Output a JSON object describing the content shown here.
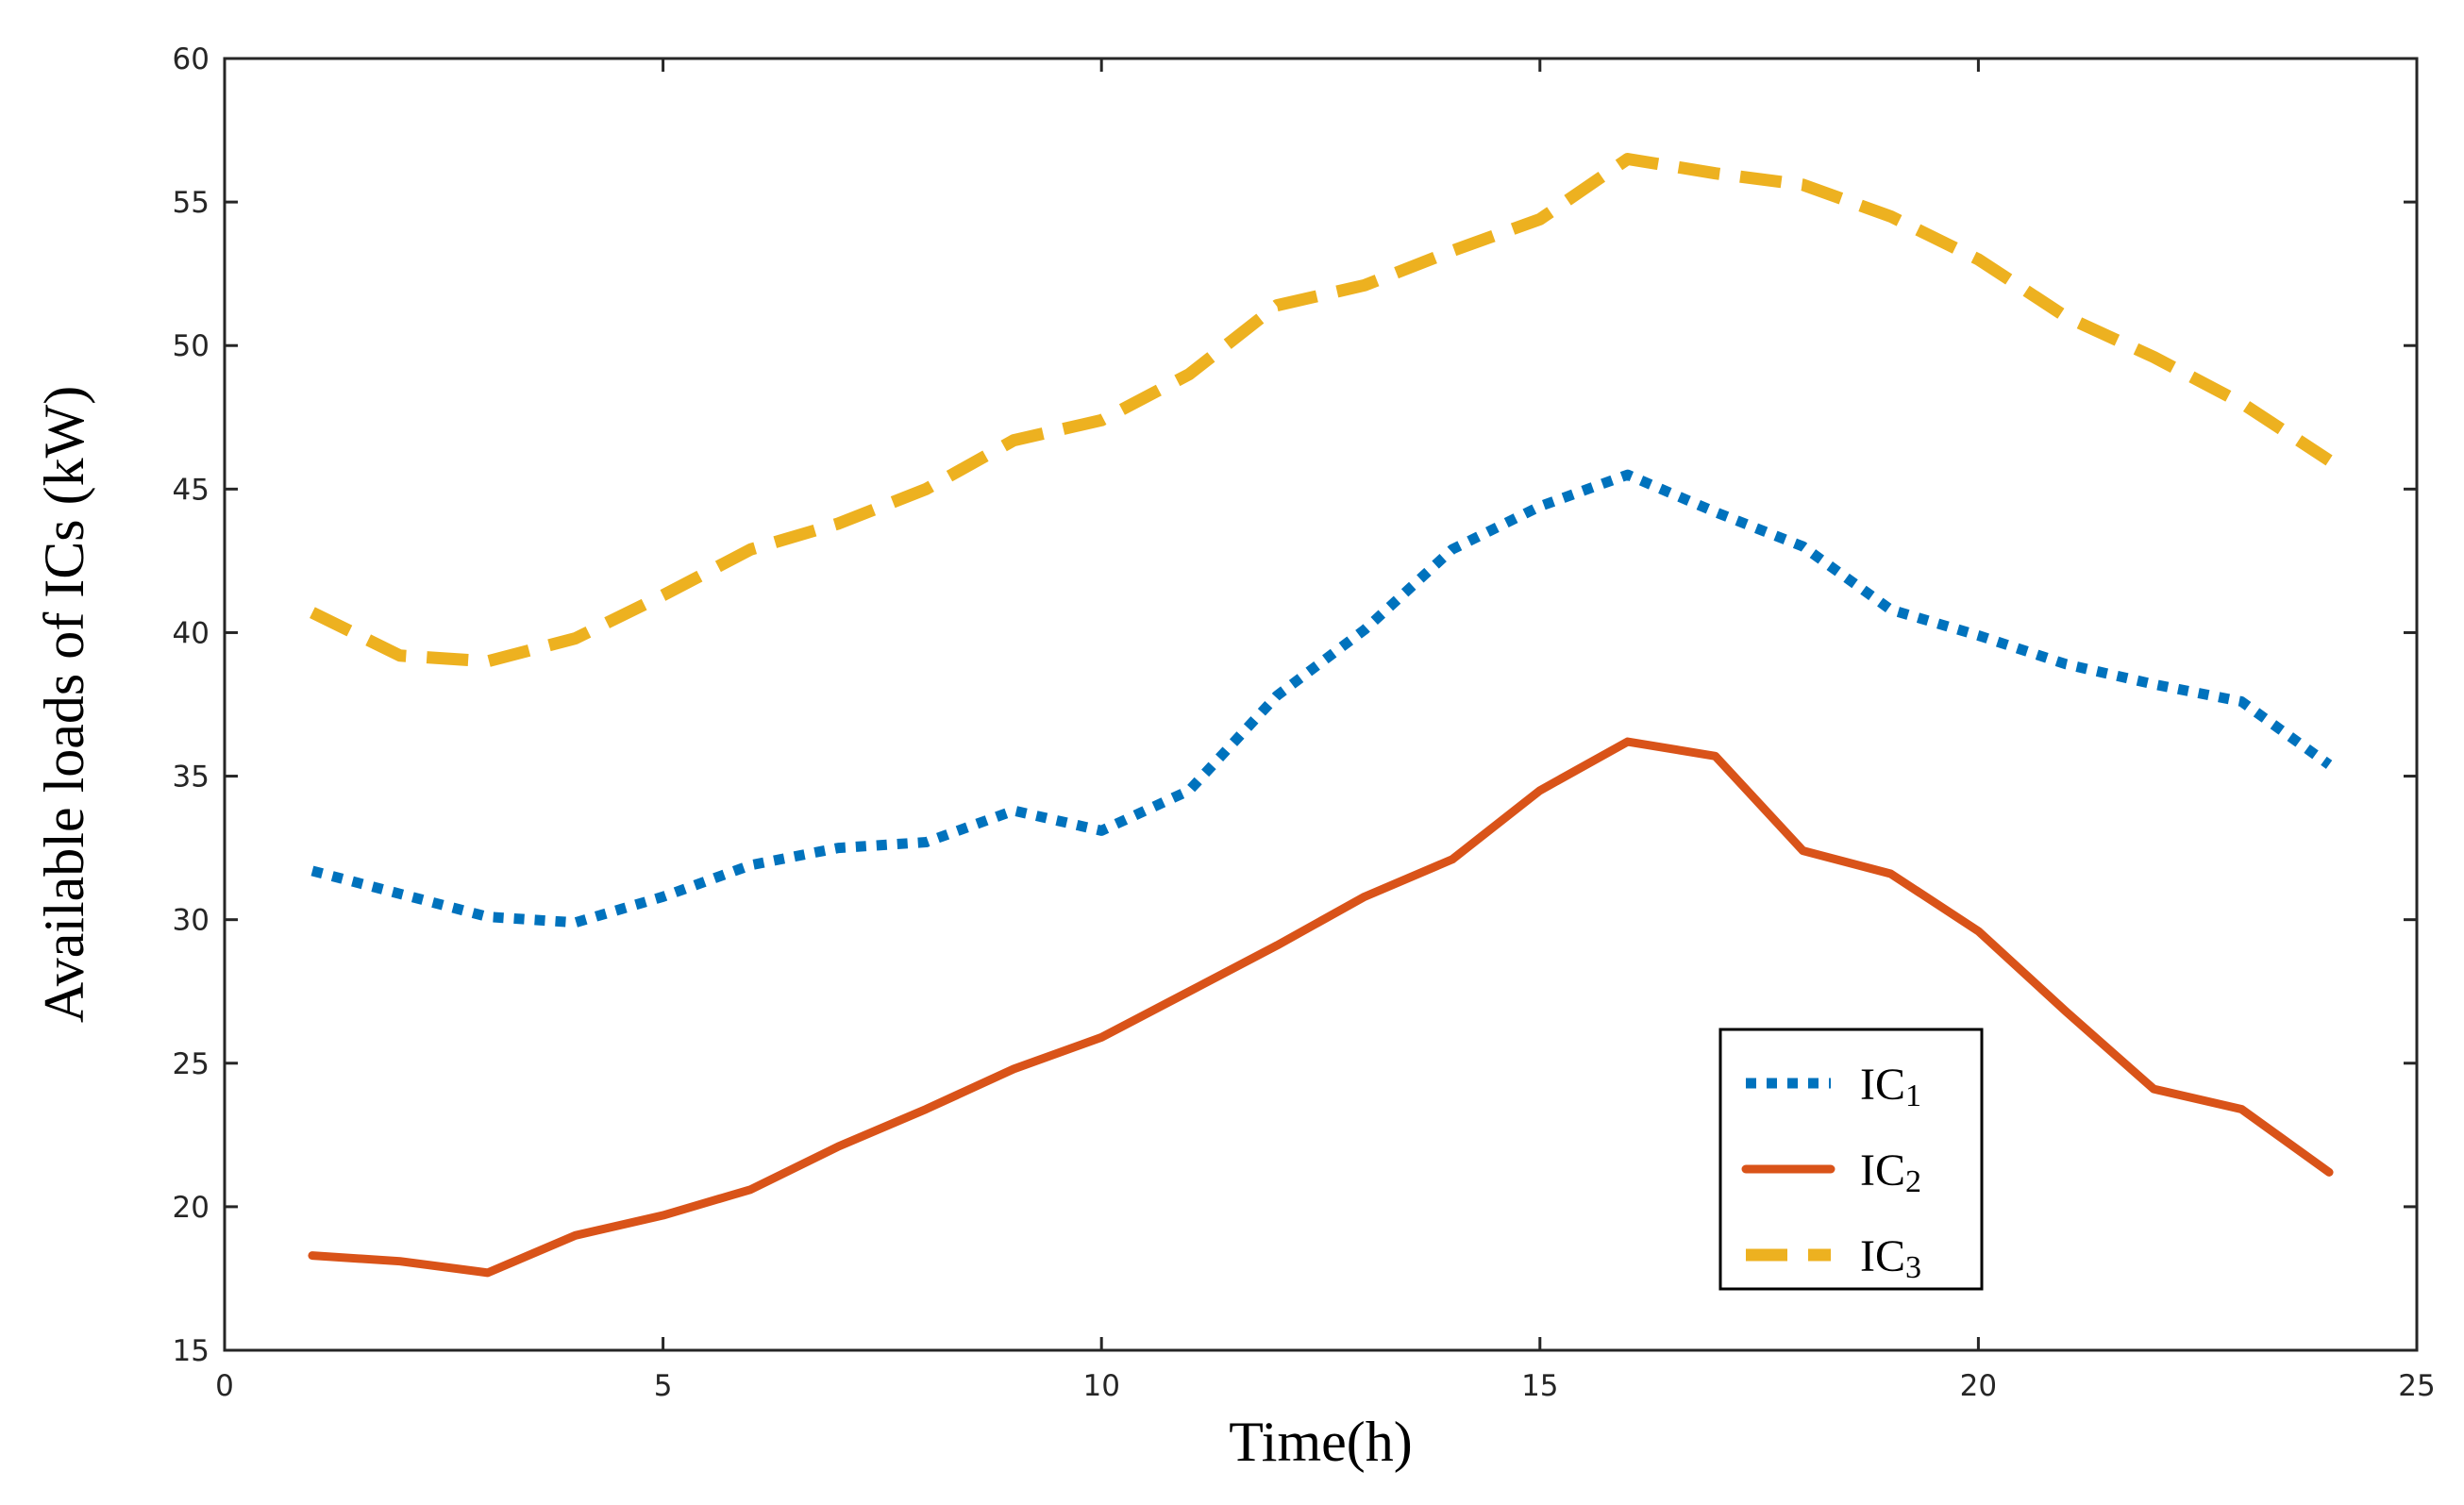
{
  "chart_data": {
    "type": "line",
    "title": "",
    "xlabel": "Time(h)",
    "ylabel": "Available loads of ICs (kW)",
    "xlim": [
      0,
      25
    ],
    "ylim": [
      15,
      60
    ],
    "xticks": [
      0,
      5,
      10,
      15,
      20,
      25
    ],
    "yticks": [
      15,
      20,
      25,
      30,
      35,
      40,
      45,
      50,
      55,
      60
    ],
    "grid": false,
    "legend_position": "bottom-right",
    "x": [
      1,
      2,
      3,
      4,
      5,
      6,
      7,
      8,
      9,
      10,
      11,
      12,
      13,
      14,
      15,
      16,
      17,
      18,
      19,
      20,
      21,
      22,
      23,
      24
    ],
    "series": [
      {
        "name": "IC1",
        "label_main": "IC",
        "label_sub": "1",
        "style": "dotted",
        "color": "#0072BD",
        "values": [
          31.7,
          30.9,
          30.1,
          29.9,
          30.8,
          31.9,
          32.5,
          32.7,
          33.8,
          33.1,
          34.5,
          37.8,
          40.1,
          42.9,
          44.4,
          45.5,
          44.2,
          43.0,
          40.8,
          39.9,
          38.9,
          38.2,
          37.6,
          35.4
        ]
      },
      {
        "name": "IC2",
        "label_main": "IC",
        "label_sub": "2",
        "style": "solid",
        "color": "#D95319",
        "values": [
          18.3,
          18.1,
          17.7,
          19.0,
          19.7,
          20.6,
          22.1,
          23.4,
          24.8,
          25.9,
          27.5,
          29.1,
          30.8,
          32.1,
          34.5,
          36.2,
          35.7,
          32.4,
          31.6,
          29.6,
          26.8,
          24.1,
          23.4,
          21.2
        ]
      },
      {
        "name": "IC3",
        "label_main": "IC",
        "label_sub": "3",
        "style": "dashed",
        "color": "#EDB120",
        "values": [
          40.7,
          39.2,
          39.0,
          39.8,
          41.3,
          42.9,
          43.8,
          45.0,
          46.7,
          47.4,
          49.0,
          51.4,
          52.1,
          53.3,
          54.4,
          56.5,
          56.0,
          55.6,
          54.5,
          53.0,
          51.0,
          49.6,
          48.0,
          46.0
        ]
      }
    ]
  }
}
